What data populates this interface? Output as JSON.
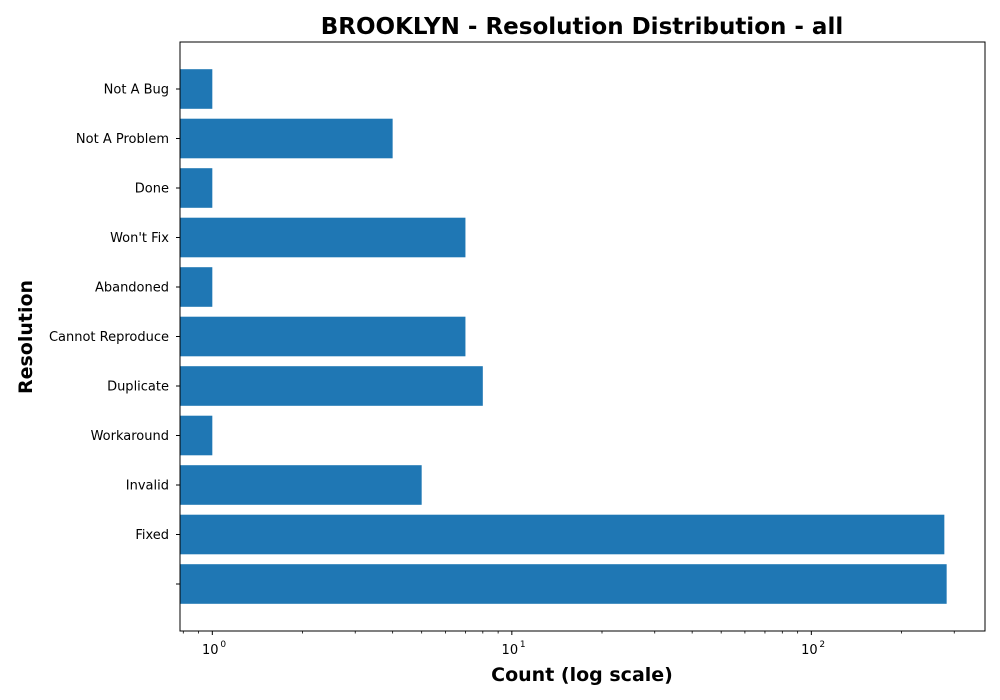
{
  "chart_data": {
    "type": "bar",
    "orientation": "horizontal",
    "title": "BROOKLYN - Resolution Distribution - all",
    "xlabel": "Count (log scale)",
    "ylabel": "Resolution",
    "x_scale": "log",
    "xlim": [
      0.78,
      380
    ],
    "x_ticks": [
      {
        "value": 1,
        "base": "10",
        "exp": "0"
      },
      {
        "value": 10,
        "base": "10",
        "exp": "1"
      },
      {
        "value": 100,
        "base": "10",
        "exp": "2"
      }
    ],
    "categories": [
      "",
      "Fixed",
      "Invalid",
      "Workaround",
      "Duplicate",
      "Cannot Reproduce",
      "Abandoned",
      "Won't Fix",
      "Done",
      "Not A Problem",
      "Not A Bug"
    ],
    "values": [
      283,
      278,
      5,
      1,
      8,
      7,
      1,
      7,
      1,
      4,
      1
    ],
    "bar_color": "#1f77b4",
    "grid": false,
    "legend": "none"
  }
}
